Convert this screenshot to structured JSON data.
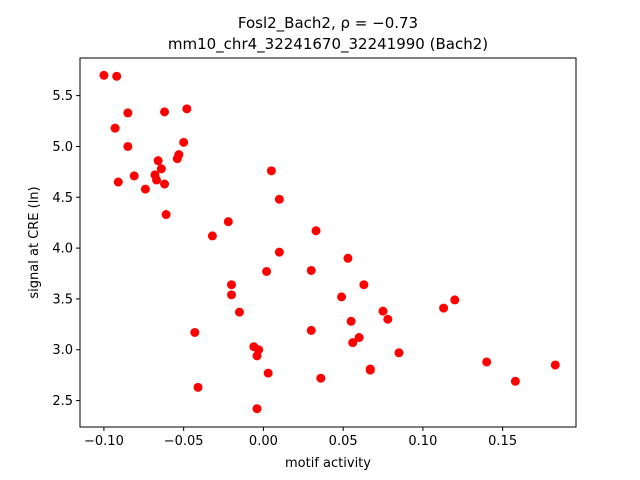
{
  "chart_data": {
    "type": "scatter",
    "title_line1": "Fosl2_Bach2, ρ = −0.73",
    "title_line2": "mm10_chr4_32241670_32241990 (Bach2)",
    "xlabel": "motif activity",
    "ylabel": "signal at CRE (ln)",
    "xlim": [
      -0.115,
      0.196
    ],
    "ylim": [
      2.24,
      5.87
    ],
    "xticks": [
      -0.1,
      -0.05,
      0.0,
      0.05,
      0.1,
      0.15
    ],
    "xtick_labels": [
      "−0.10",
      "−0.05",
      "0.00",
      "0.05",
      "0.10",
      "0.15"
    ],
    "yticks": [
      2.5,
      3.0,
      3.5,
      4.0,
      4.5,
      5.0,
      5.5
    ],
    "ytick_labels": [
      "2.5",
      "3.0",
      "3.5",
      "4.0",
      "4.5",
      "5.0",
      "5.5"
    ],
    "grid": false,
    "point_color": "#ff0000",
    "points": [
      {
        "x": -0.1,
        "y": 5.7
      },
      {
        "x": -0.092,
        "y": 5.69
      },
      {
        "x": -0.085,
        "y": 5.33
      },
      {
        "x": -0.062,
        "y": 5.34
      },
      {
        "x": -0.048,
        "y": 5.37
      },
      {
        "x": -0.093,
        "y": 5.18
      },
      {
        "x": -0.085,
        "y": 5.0
      },
      {
        "x": -0.05,
        "y": 5.04
      },
      {
        "x": -0.066,
        "y": 4.86
      },
      {
        "x": -0.053,
        "y": 4.92
      },
      {
        "x": -0.054,
        "y": 4.88
      },
      {
        "x": -0.064,
        "y": 4.78
      },
      {
        "x": -0.068,
        "y": 4.72
      },
      {
        "x": -0.081,
        "y": 4.71
      },
      {
        "x": -0.067,
        "y": 4.67
      },
      {
        "x": -0.091,
        "y": 4.65
      },
      {
        "x": -0.062,
        "y": 4.63
      },
      {
        "x": -0.074,
        "y": 4.58
      },
      {
        "x": -0.061,
        "y": 4.33
      },
      {
        "x": 0.005,
        "y": 4.76
      },
      {
        "x": 0.01,
        "y": 4.48
      },
      {
        "x": -0.022,
        "y": 4.26
      },
      {
        "x": -0.032,
        "y": 4.12
      },
      {
        "x": 0.033,
        "y": 4.17
      },
      {
        "x": 0.01,
        "y": 3.96
      },
      {
        "x": 0.053,
        "y": 3.9
      },
      {
        "x": 0.002,
        "y": 3.77
      },
      {
        "x": 0.03,
        "y": 3.78
      },
      {
        "x": -0.02,
        "y": 3.64
      },
      {
        "x": 0.063,
        "y": 3.64
      },
      {
        "x": -0.02,
        "y": 3.54
      },
      {
        "x": 0.049,
        "y": 3.52
      },
      {
        "x": 0.12,
        "y": 3.49
      },
      {
        "x": 0.113,
        "y": 3.41
      },
      {
        "x": -0.015,
        "y": 3.37
      },
      {
        "x": 0.075,
        "y": 3.38
      },
      {
        "x": 0.055,
        "y": 3.28
      },
      {
        "x": 0.078,
        "y": 3.3
      },
      {
        "x": -0.043,
        "y": 3.17
      },
      {
        "x": 0.03,
        "y": 3.19
      },
      {
        "x": 0.06,
        "y": 3.12
      },
      {
        "x": 0.056,
        "y": 3.07
      },
      {
        "x": -0.006,
        "y": 3.03
      },
      {
        "x": -0.003,
        "y": 3.0
      },
      {
        "x": -0.004,
        "y": 2.94
      },
      {
        "x": 0.085,
        "y": 2.97
      },
      {
        "x": 0.14,
        "y": 2.88
      },
      {
        "x": 0.183,
        "y": 2.85
      },
      {
        "x": 0.067,
        "y": 2.81
      },
      {
        "x": 0.067,
        "y": 2.8
      },
      {
        "x": 0.003,
        "y": 2.77
      },
      {
        "x": 0.036,
        "y": 2.72
      },
      {
        "x": 0.158,
        "y": 2.69
      },
      {
        "x": -0.041,
        "y": 2.63
      },
      {
        "x": -0.004,
        "y": 2.42
      }
    ]
  }
}
